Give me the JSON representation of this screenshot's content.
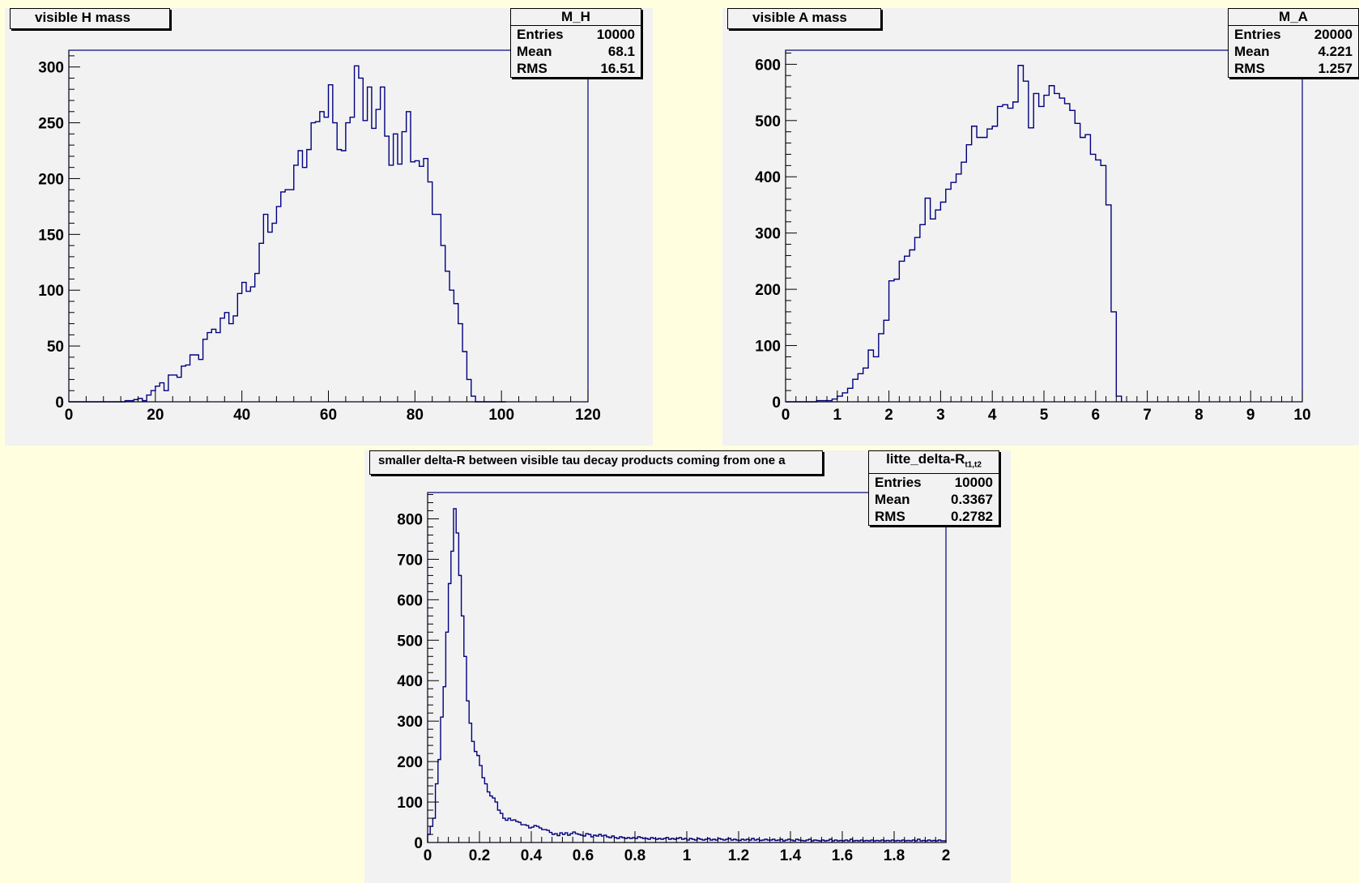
{
  "colors": {
    "canvas": "#ffffe0",
    "pad": "#f2f2f2",
    "histogram": "#000080",
    "axis": "#000000"
  },
  "chart_data": [
    {
      "type": "bar",
      "histogram_style": "step",
      "title": "visible H mass",
      "xlabel": "",
      "ylabel": "",
      "xlim": [
        0,
        120
      ],
      "ylim": [
        0,
        315
      ],
      "xticks": [
        "0",
        "20",
        "40",
        "60",
        "80",
        "100",
        "120"
      ],
      "yticks": [
        "0",
        "50",
        "100",
        "150",
        "200",
        "250",
        "300"
      ],
      "bin_edges": [
        0,
        101
      ],
      "values": [
        0,
        0,
        0,
        0,
        0,
        0,
        0,
        0,
        0,
        0,
        0,
        0,
        0,
        1,
        1,
        2,
        3,
        1,
        6,
        10,
        14,
        17,
        10,
        24,
        24,
        22,
        32,
        33,
        42,
        42,
        38,
        56,
        62,
        65,
        62,
        75,
        80,
        70,
        77,
        97,
        107,
        99,
        103,
        115,
        142,
        168,
        152,
        160,
        175,
        188,
        190,
        190,
        212,
        225,
        210,
        226,
        250,
        251,
        260,
        255,
        284,
        250,
        226,
        225,
        250,
        255,
        301,
        290,
        252,
        282,
        245,
        262,
        282,
        238,
        212,
        240,
        213,
        242,
        260,
        215,
        216,
        211,
        218,
        197,
        168,
        168,
        140,
        117,
        100,
        88,
        70,
        45,
        20,
        5,
        0,
        0,
        0,
        0,
        0,
        0,
        0
      ],
      "grid": false,
      "legend": "none",
      "stats": {
        "name": "M_H",
        "entries_label": "Entries",
        "entries": "10000",
        "mean_label": "Mean",
        "mean": "68.1",
        "rms_label": "RMS",
        "rms": "16.51"
      }
    },
    {
      "type": "bar",
      "histogram_style": "step",
      "title": "visible A mass",
      "xlabel": "",
      "ylabel": "",
      "xlim": [
        0,
        10
      ],
      "ylim": [
        0,
        625
      ],
      "xticks": [
        "0",
        "1",
        "2",
        "3",
        "4",
        "5",
        "6",
        "7",
        "8",
        "9",
        "10"
      ],
      "yticks": [
        "0",
        "100",
        "200",
        "300",
        "400",
        "500",
        "600"
      ],
      "bin_edges": [
        0,
        6.5
      ],
      "values": [
        0,
        0,
        0,
        0,
        0,
        0,
        2,
        2,
        2,
        5,
        10,
        16,
        24,
        40,
        50,
        60,
        92,
        80,
        121,
        145,
        215,
        218,
        250,
        259,
        270,
        292,
        315,
        362,
        325,
        341,
        355,
        378,
        390,
        405,
        426,
        457,
        490,
        470,
        470,
        485,
        490,
        525,
        528,
        522,
        533,
        598,
        570,
        487,
        548,
        525,
        545,
        562,
        548,
        540,
        530,
        518,
        495,
        470,
        475,
        440,
        430,
        420,
        350,
        160,
        10
      ],
      "grid": false,
      "legend": "none",
      "stats": {
        "name": "M_A",
        "entries_label": "Entries",
        "entries": "20000",
        "mean_label": "Mean",
        "mean": "4.221",
        "rms_label": "RMS",
        "rms": "1.257"
      }
    },
    {
      "type": "bar",
      "histogram_style": "step",
      "title": "smaller delta-R between visible tau decay products coming from one a",
      "xlabel": "",
      "ylabel": "",
      "xlim": [
        0,
        2
      ],
      "ylim": [
        0,
        865
      ],
      "xticks": [
        "0",
        "0.2",
        "0.4",
        "0.6",
        "0.8",
        "1",
        "1.2",
        "1.4",
        "1.6",
        "1.8",
        "2"
      ],
      "yticks": [
        "0",
        "100",
        "200",
        "300",
        "400",
        "500",
        "600",
        "700",
        "800"
      ],
      "bin_edges": [
        0,
        2
      ],
      "values": [
        20,
        40,
        60,
        145,
        205,
        310,
        385,
        520,
        640,
        720,
        825,
        765,
        660,
        560,
        460,
        350,
        295,
        250,
        225,
        215,
        190,
        160,
        145,
        125,
        115,
        110,
        100,
        80,
        72,
        60,
        55,
        60,
        55,
        56,
        52,
        50,
        44,
        44,
        42,
        36,
        38,
        42,
        40,
        36,
        32,
        32,
        30,
        25,
        20,
        22,
        17,
        24,
        20,
        24,
        18,
        22,
        26,
        22,
        20,
        18,
        16,
        22,
        20,
        14,
        18,
        16,
        20,
        16,
        18,
        14,
        12,
        16,
        12,
        10,
        14,
        12,
        10,
        12,
        10,
        12,
        10,
        14,
        12,
        10,
        10,
        8,
        12,
        10,
        8,
        10,
        8,
        10,
        12,
        8,
        10,
        8,
        10,
        12,
        8,
        10,
        6,
        10,
        8,
        6,
        10,
        8,
        6,
        8,
        10,
        6,
        8,
        6,
        10,
        8,
        6,
        8,
        10,
        6,
        8,
        6,
        5,
        8,
        6,
        8,
        6,
        10,
        6,
        8,
        5,
        6,
        8,
        6,
        6,
        8,
        5,
        6,
        8,
        4,
        6,
        8,
        6,
        4,
        8,
        6,
        5,
        4,
        6,
        8,
        4,
        6,
        5,
        4,
        6,
        4,
        5,
        8,
        4,
        6,
        4,
        5,
        4,
        6,
        4,
        8,
        4,
        5,
        4,
        6,
        4,
        5,
        4,
        6,
        4,
        5,
        4,
        6,
        4,
        5,
        4,
        6,
        4,
        5,
        4,
        6,
        4,
        5,
        4,
        6,
        4,
        8,
        4,
        5,
        4,
        6,
        4,
        5,
        4,
        6,
        4,
        4
      ],
      "grid": false,
      "legend": "none",
      "stats": {
        "name_main": "litte_delta-R",
        "name_sub": "t1,t2",
        "entries_label": "Entries",
        "entries": "10000",
        "mean_label": "Mean",
        "mean": "0.3367",
        "rms_label": "RMS",
        "rms": "0.2782"
      }
    }
  ]
}
